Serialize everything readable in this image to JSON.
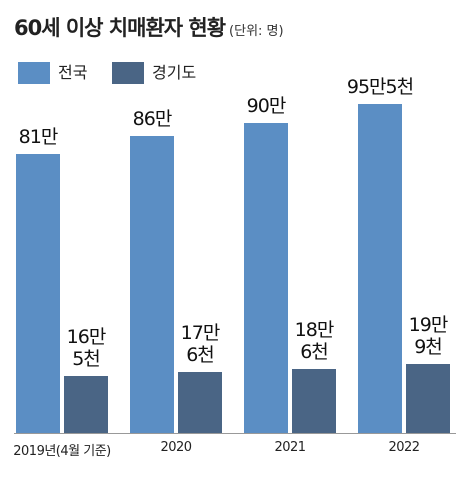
{
  "chart_data": {
    "type": "bar",
    "title": "60세 이상 치매환자 현황",
    "subtitle": "(단위: 명)",
    "categories": [
      "2019년(4월 기준)",
      "2020",
      "2021",
      "2022"
    ],
    "series": [
      {
        "name": "전국",
        "color": "#5b8ec4",
        "values": [
          810000,
          860000,
          900000,
          955000
        ],
        "value_labels": [
          "81만",
          "86만",
          "90만",
          "95만5천"
        ]
      },
      {
        "name": "경기도",
        "color": "#4a6585",
        "values": [
          165000,
          176000,
          186000,
          199000
        ],
        "value_labels": [
          "16만\n5천",
          "17만\n6천",
          "18만\n6천",
          "19만\n9천"
        ]
      }
    ],
    "ylim": [
      0,
      1000000
    ],
    "legend": "top-left"
  }
}
